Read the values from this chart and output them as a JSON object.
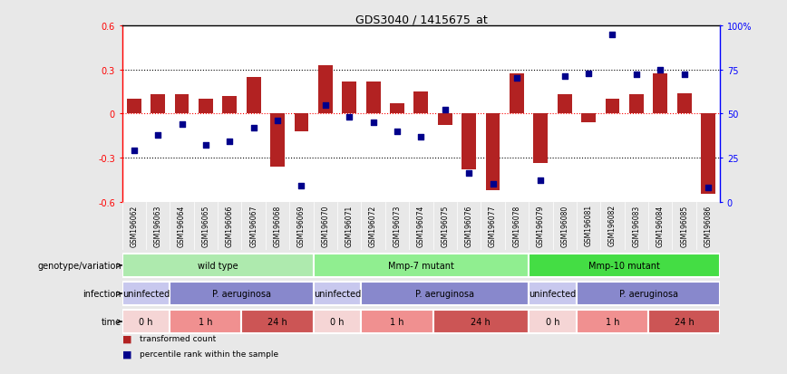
{
  "title": "GDS3040 / 1415675_at",
  "samples": [
    "GSM196062",
    "GSM196063",
    "GSM196064",
    "GSM196065",
    "GSM196066",
    "GSM196067",
    "GSM196068",
    "GSM196069",
    "GSM196070",
    "GSM196071",
    "GSM196072",
    "GSM196073",
    "GSM196074",
    "GSM196075",
    "GSM196076",
    "GSM196077",
    "GSM196078",
    "GSM196079",
    "GSM196080",
    "GSM196081",
    "GSM196082",
    "GSM196083",
    "GSM196084",
    "GSM196085",
    "GSM196086"
  ],
  "bar_values": [
    0.1,
    0.13,
    0.13,
    0.1,
    0.12,
    0.25,
    -0.36,
    -0.12,
    0.33,
    0.22,
    0.22,
    0.07,
    0.15,
    -0.08,
    -0.38,
    -0.52,
    0.27,
    -0.34,
    0.13,
    -0.06,
    0.1,
    0.13,
    0.27,
    0.14,
    -0.55
  ],
  "percentile_values": [
    0.29,
    0.38,
    0.44,
    0.32,
    0.34,
    0.42,
    0.46,
    0.09,
    0.55,
    0.48,
    0.45,
    0.4,
    0.37,
    0.52,
    0.16,
    0.1,
    0.7,
    0.12,
    0.71,
    0.73,
    0.95,
    0.72,
    0.75,
    0.72,
    0.08
  ],
  "bar_color": "#b22222",
  "dot_color": "#00008b",
  "ylim_left": [
    -0.6,
    0.6
  ],
  "ylim_right": [
    0.0,
    1.0
  ],
  "yticks_left": [
    -0.6,
    -0.3,
    0.0,
    0.3,
    0.6
  ],
  "ytick_labels_left": [
    "-0.6",
    "-0.3",
    "0",
    "0.3",
    "0.6"
  ],
  "yticks_right": [
    0.0,
    0.25,
    0.5,
    0.75,
    1.0
  ],
  "ytick_labels_right": [
    "0",
    "25",
    "50",
    "75",
    "100%"
  ],
  "hlines_dotted": [
    -0.3,
    0.3
  ],
  "hline_zero_color": "red",
  "genotype_groups": [
    {
      "label": "wild type",
      "start": 0,
      "end": 8,
      "color": "#aeeaae"
    },
    {
      "label": "Mmp-7 mutant",
      "start": 8,
      "end": 17,
      "color": "#90ee90"
    },
    {
      "label": "Mmp-10 mutant",
      "start": 17,
      "end": 25,
      "color": "#44dd44"
    }
  ],
  "infection_groups": [
    {
      "label": "uninfected",
      "start": 0,
      "end": 2,
      "color": "#c8c8ee"
    },
    {
      "label": "P. aeruginosa",
      "start": 2,
      "end": 8,
      "color": "#8888cc"
    },
    {
      "label": "uninfected",
      "start": 8,
      "end": 10,
      "color": "#c8c8ee"
    },
    {
      "label": "P. aeruginosa",
      "start": 10,
      "end": 17,
      "color": "#8888cc"
    },
    {
      "label": "uninfected",
      "start": 17,
      "end": 19,
      "color": "#c8c8ee"
    },
    {
      "label": "P. aeruginosa",
      "start": 19,
      "end": 25,
      "color": "#8888cc"
    }
  ],
  "time_groups": [
    {
      "label": "0 h",
      "start": 0,
      "end": 2,
      "color": "#f5d5d5"
    },
    {
      "label": "1 h",
      "start": 2,
      "end": 5,
      "color": "#f09090"
    },
    {
      "label": "24 h",
      "start": 5,
      "end": 8,
      "color": "#cc5555"
    },
    {
      "label": "0 h",
      "start": 8,
      "end": 10,
      "color": "#f5d5d5"
    },
    {
      "label": "1 h",
      "start": 10,
      "end": 13,
      "color": "#f09090"
    },
    {
      "label": "24 h",
      "start": 13,
      "end": 17,
      "color": "#cc5555"
    },
    {
      "label": "0 h",
      "start": 17,
      "end": 19,
      "color": "#f5d5d5"
    },
    {
      "label": "1 h",
      "start": 19,
      "end": 22,
      "color": "#f09090"
    },
    {
      "label": "24 h",
      "start": 22,
      "end": 25,
      "color": "#cc5555"
    }
  ],
  "row_labels": [
    "genotype/variation",
    "infection",
    "time"
  ],
  "legend_items": [
    {
      "color": "#b22222",
      "label": "transformed count"
    },
    {
      "color": "#00008b",
      "label": "percentile rank within the sample"
    }
  ],
  "fig_bg": "#e8e8e8",
  "plot_bg": "#ffffff",
  "xtick_bg": "#d0d0d0"
}
